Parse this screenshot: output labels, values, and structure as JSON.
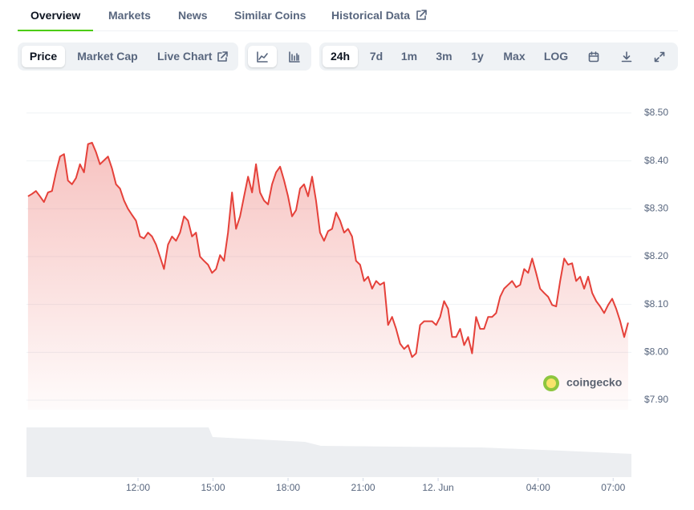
{
  "tabs": [
    "Overview",
    "Markets",
    "News",
    "Similar Coins",
    "Historical Data"
  ],
  "active_tab": 0,
  "view_buttons": [
    "Price",
    "Market Cap",
    "Live Chart"
  ],
  "range_buttons": [
    "24h",
    "7d",
    "1m",
    "3m",
    "1y",
    "Max",
    "LOG"
  ],
  "watermark": "coingecko",
  "chart_data": {
    "type": "line",
    "color": "#e5413a",
    "grid": true,
    "x": [
      7.6,
      7.76,
      7.92,
      8.08,
      8.24,
      8.4,
      8.56,
      8.72,
      8.88,
      9.04,
      9.2,
      9.36,
      9.52,
      9.68,
      9.84,
      10,
      10.16,
      10.32,
      10.48,
      10.64,
      10.8,
      10.96,
      11.12,
      11.28,
      11.44,
      11.6,
      11.76,
      11.92,
      12.08,
      12.24,
      12.4,
      12.56,
      12.72,
      12.88,
      13.04,
      13.2,
      13.36,
      13.52,
      13.68,
      13.84,
      14,
      14.16,
      14.32,
      14.48,
      14.64,
      14.8,
      14.96,
      15.12,
      15.28,
      15.44,
      15.6,
      15.76,
      15.92,
      16.08,
      16.24,
      16.4,
      16.56,
      16.72,
      16.88,
      17.04,
      17.2,
      17.36,
      17.52,
      17.68,
      17.84,
      18,
      18.16,
      18.32,
      18.48,
      18.64,
      18.8,
      18.96,
      19.12,
      19.28,
      19.44,
      19.6,
      19.76,
      19.92,
      20.08,
      20.24,
      20.4,
      20.56,
      20.72,
      20.88,
      21.04,
      21.2,
      21.36,
      21.52,
      21.68,
      21.84,
      22,
      22.16,
      22.32,
      22.48,
      22.64,
      22.8,
      22.96,
      23.12,
      23.28,
      23.44,
      23.6,
      23.76,
      23.92,
      24.08,
      24.24,
      24.4,
      24.56,
      24.72,
      24.88,
      25.04,
      25.2,
      25.36,
      25.52,
      25.68,
      25.84,
      26,
      26.16,
      26.32,
      26.48,
      26.64,
      26.8,
      26.96,
      27.12,
      27.28,
      27.44,
      27.6,
      27.76,
      27.92,
      28.08,
      28.24,
      28.4,
      28.56,
      28.72,
      28.88,
      29.04,
      29.2,
      29.36,
      29.52,
      29.68,
      29.84,
      30,
      30.16,
      30.32,
      30.48,
      30.64,
      30.8,
      30.96,
      31.12,
      31.28,
      31.44,
      31.6
    ],
    "values": [
      8.326,
      8.331,
      8.337,
      8.326,
      8.314,
      8.334,
      8.337,
      8.376,
      8.409,
      8.414,
      8.359,
      8.351,
      8.364,
      8.393,
      8.376,
      8.435,
      8.438,
      8.418,
      8.393,
      8.401,
      8.409,
      8.384,
      8.351,
      8.342,
      8.317,
      8.3,
      8.287,
      8.275,
      8.242,
      8.238,
      8.25,
      8.242,
      8.225,
      8.2,
      8.174,
      8.225,
      8.242,
      8.233,
      8.25,
      8.284,
      8.275,
      8.242,
      8.25,
      8.2,
      8.191,
      8.183,
      8.166,
      8.174,
      8.203,
      8.191,
      8.25,
      8.334,
      8.258,
      8.284,
      8.326,
      8.367,
      8.334,
      8.393,
      8.334,
      8.317,
      8.309,
      8.351,
      8.376,
      8.388,
      8.359,
      8.326,
      8.284,
      8.297,
      8.342,
      8.351,
      8.326,
      8.367,
      8.317,
      8.25,
      8.233,
      8.253,
      8.258,
      8.292,
      8.275,
      8.25,
      8.258,
      8.242,
      8.191,
      8.183,
      8.149,
      8.158,
      8.133,
      8.149,
      8.141,
      8.146,
      8.057,
      8.074,
      8.049,
      8.018,
      8.007,
      8.015,
      7.99,
      7.998,
      8.057,
      8.065,
      8.065,
      8.065,
      8.057,
      8.074,
      8.107,
      8.091,
      8.032,
      8.032,
      8.049,
      8.015,
      8.032,
      7.998,
      8.074,
      8.049,
      8.049,
      8.074,
      8.074,
      8.082,
      8.116,
      8.133,
      8.141,
      8.149,
      8.136,
      8.141,
      8.174,
      8.166,
      8.196,
      8.166,
      8.133,
      8.124,
      8.116,
      8.099,
      8.096,
      8.149,
      8.196,
      8.183,
      8.186,
      8.149,
      8.158,
      8.133,
      8.158,
      8.124,
      8.107,
      8.096,
      8.082,
      8.099,
      8.112,
      8.091,
      8.065,
      8.032,
      8.062
    ],
    "xlim": [
      7.54,
      31.73
    ],
    "ylim": [
      7.88,
      8.535
    ],
    "xticks": [
      {
        "value": 12,
        "label": "12:00"
      },
      {
        "value": 15,
        "label": "15:00"
      },
      {
        "value": 18,
        "label": "18:00"
      },
      {
        "value": 21,
        "label": "21:00"
      },
      {
        "value": 24,
        "label": "12. Jun"
      },
      {
        "value": 28,
        "label": "04:00"
      },
      {
        "value": 31,
        "label": "07:00"
      }
    ],
    "yticks": [
      {
        "value": 7.9,
        "label": "$7.90"
      },
      {
        "value": 8.0,
        "label": "$8.00"
      },
      {
        "value": 8.1,
        "label": "$8.10"
      },
      {
        "value": 8.2,
        "label": "$8.20"
      },
      {
        "value": 8.3,
        "label": "$8.30"
      },
      {
        "value": 8.4,
        "label": "$8.40"
      },
      {
        "value": 8.5,
        "label": "$8.50"
      }
    ]
  }
}
